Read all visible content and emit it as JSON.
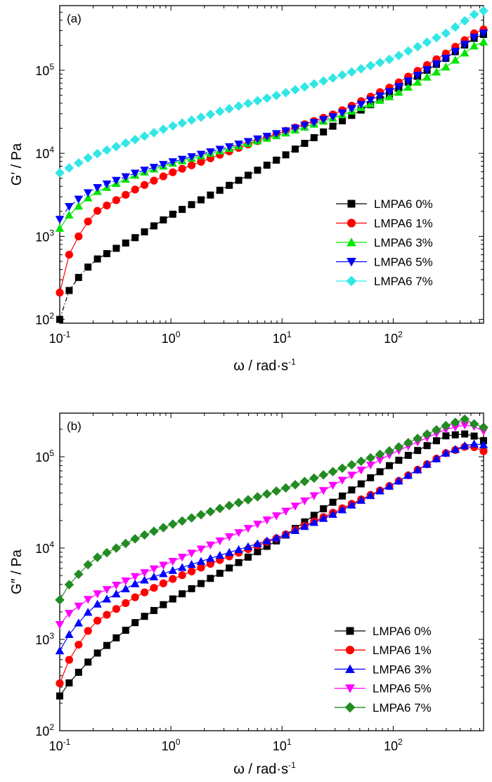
{
  "chart_data": [
    {
      "type": "scatter",
      "panel_label": "(a)",
      "ylabel": "G′ / Pa",
      "xlabel": "ω / rad·s-1",
      "x_scale": "log",
      "y_scale": "log",
      "xlim": [
        0.1,
        650
      ],
      "ylim": [
        90,
        600000
      ],
      "x_ticks": [
        {
          "base": "10",
          "exp": "-1",
          "value": 0.1
        },
        {
          "base": "10",
          "exp": "0",
          "value": 1
        },
        {
          "base": "10",
          "exp": "1",
          "value": 10
        },
        {
          "base": "10",
          "exp": "2",
          "value": 100
        }
      ],
      "y_ticks": [
        {
          "base": "10",
          "exp": "2",
          "value": 100
        },
        {
          "base": "10",
          "exp": "3",
          "value": 1000
        },
        {
          "base": "10",
          "exp": "4",
          "value": 10000
        },
        {
          "base": "10",
          "exp": "5",
          "value": 100000
        }
      ],
      "legend_position": "lower-right",
      "series": [
        {
          "name": "LMPA6 0%",
          "color": "#000000",
          "marker": "square",
          "line": "dashdot",
          "start": 100,
          "end": 270000,
          "anchors": [
            [
              0.1,
              100
            ],
            [
              0.125,
              250
            ],
            [
              0.2,
              500
            ],
            [
              0.5,
              1000
            ],
            [
              1,
              1800
            ],
            [
              3,
              3800
            ],
            [
              10,
              9000
            ],
            [
              30,
              22000
            ],
            [
              100,
              55000
            ],
            [
              300,
              140000
            ],
            [
              600,
              270000
            ]
          ]
        },
        {
          "name": "LMPA6 1%",
          "color": "#ff0000",
          "marker": "circle",
          "line": "solid",
          "start": 210,
          "end": 310000,
          "anchors": [
            [
              0.1,
              210
            ],
            [
              0.125,
              700
            ],
            [
              0.2,
              1900
            ],
            [
              0.5,
              3800
            ],
            [
              1,
              5800
            ],
            [
              3,
              10000
            ],
            [
              10,
              18000
            ],
            [
              30,
              30000
            ],
            [
              100,
              65000
            ],
            [
              300,
              160000
            ],
            [
              600,
              310000
            ]
          ]
        },
        {
          "name": "LMPA6 3%",
          "color": "#00e600",
          "marker": "triangle-up",
          "line": "solid",
          "start": 1250,
          "end": 220000,
          "anchors": [
            [
              0.1,
              1250
            ],
            [
              0.125,
              1900
            ],
            [
              0.2,
              3300
            ],
            [
              0.5,
              5600
            ],
            [
              1,
              7500
            ],
            [
              3,
              11000
            ],
            [
              10,
              17000
            ],
            [
              30,
              27000
            ],
            [
              100,
              50000
            ],
            [
              300,
              110000
            ],
            [
              600,
              220000
            ]
          ]
        },
        {
          "name": "LMPA6 5%",
          "color": "#0000ff",
          "marker": "triangle-down",
          "line": "dashdot",
          "start": 1600,
          "end": 280000,
          "anchors": [
            [
              0.1,
              1600
            ],
            [
              0.125,
              2400
            ],
            [
              0.2,
              3700
            ],
            [
              0.5,
              5900
            ],
            [
              1,
              7800
            ],
            [
              3,
              11500
            ],
            [
              10,
              18000
            ],
            [
              30,
              28000
            ],
            [
              100,
              58000
            ],
            [
              300,
              140000
            ],
            [
              600,
              280000
            ]
          ]
        },
        {
          "name": "LMPA6 7%",
          "color": "#33e6e6",
          "marker": "diamond",
          "line": "dashdot",
          "start": 5800,
          "end": 520000,
          "anchors": [
            [
              0.1,
              5800
            ],
            [
              0.2,
              9500
            ],
            [
              0.5,
              15000
            ],
            [
              1,
              21000
            ],
            [
              3,
              33000
            ],
            [
              10,
              52000
            ],
            [
              30,
              82000
            ],
            [
              100,
              140000
            ],
            [
              300,
              280000
            ],
            [
              600,
              520000
            ]
          ]
        }
      ]
    },
    {
      "type": "scatter",
      "panel_label": "(b)",
      "ylabel": "G″ / Pa",
      "xlabel": "ω / rad·s-1",
      "x_scale": "log",
      "y_scale": "log",
      "xlim": [
        0.1,
        650
      ],
      "ylim": [
        100,
        300000
      ],
      "x_ticks": [
        {
          "base": "10",
          "exp": "-1",
          "value": 0.1
        },
        {
          "base": "10",
          "exp": "0",
          "value": 1
        },
        {
          "base": "10",
          "exp": "1",
          "value": 10
        },
        {
          "base": "10",
          "exp": "2",
          "value": 100
        }
      ],
      "y_ticks": [
        {
          "base": "10",
          "exp": "2",
          "value": 100
        },
        {
          "base": "10",
          "exp": "3",
          "value": 1000
        },
        {
          "base": "10",
          "exp": "4",
          "value": 10000
        },
        {
          "base": "10",
          "exp": "5",
          "value": 100000
        }
      ],
      "legend_position": "lower-right",
      "series": [
        {
          "name": "LMPA6 0%",
          "color": "#000000",
          "marker": "square",
          "line": "solid",
          "start": 240,
          "end": 150000,
          "anchors": [
            [
              0.1,
              240
            ],
            [
              0.125,
              350
            ],
            [
              0.2,
              650
            ],
            [
              0.5,
              1600
            ],
            [
              1,
              2700
            ],
            [
              3,
              5600
            ],
            [
              10,
              13000
            ],
            [
              30,
              33000
            ],
            [
              100,
              85000
            ],
            [
              300,
              170000
            ],
            [
              500,
              180000
            ],
            [
              600,
              150000
            ]
          ]
        },
        {
          "name": "LMPA6 1%",
          "color": "#ff0000",
          "marker": "circle",
          "line": "solid",
          "start": 330,
          "end": 115000,
          "anchors": [
            [
              0.1,
              330
            ],
            [
              0.125,
              650
            ],
            [
              0.2,
              1500
            ],
            [
              0.5,
              3000
            ],
            [
              1,
              4500
            ],
            [
              3,
              7700
            ],
            [
              10,
              13500
            ],
            [
              30,
              25000
            ],
            [
              100,
              50000
            ],
            [
              300,
              110000
            ],
            [
              500,
              135000
            ],
            [
              600,
              115000
            ]
          ]
        },
        {
          "name": "LMPA6 3%",
          "color": "#0000ff",
          "marker": "triangle-up",
          "line": "solid",
          "start": 750,
          "end": 135000,
          "anchors": [
            [
              0.1,
              750
            ],
            [
              0.125,
              1200
            ],
            [
              0.2,
              2300
            ],
            [
              0.5,
              4200
            ],
            [
              1,
              5600
            ],
            [
              3,
              8600
            ],
            [
              10,
              13500
            ],
            [
              30,
              24000
            ],
            [
              100,
              50000
            ],
            [
              300,
              110000
            ],
            [
              500,
              140000
            ],
            [
              600,
              135000
            ]
          ]
        },
        {
          "name": "LMPA6 5%",
          "color": "#ff00ff",
          "marker": "triangle-down",
          "line": "solid",
          "start": 1450,
          "end": 190000,
          "anchors": [
            [
              0.1,
              1450
            ],
            [
              0.125,
              2000
            ],
            [
              0.2,
              3000
            ],
            [
              0.5,
              5000
            ],
            [
              1,
              7000
            ],
            [
              3,
              12500
            ],
            [
              10,
              24000
            ],
            [
              30,
              50000
            ],
            [
              100,
              110000
            ],
            [
              300,
              200000
            ],
            [
              500,
              230000
            ],
            [
              600,
              190000
            ]
          ]
        },
        {
          "name": "LMPA6 7%",
          "color": "#228b22",
          "marker": "diamond",
          "line": "solid",
          "start": 2700,
          "end": 210000,
          "anchors": [
            [
              0.1,
              2700
            ],
            [
              0.125,
              4200
            ],
            [
              0.2,
              7500
            ],
            [
              0.5,
              13000
            ],
            [
              1,
              18000
            ],
            [
              3,
              28000
            ],
            [
              10,
              44000
            ],
            [
              30,
              70000
            ],
            [
              100,
              120000
            ],
            [
              300,
              220000
            ],
            [
              450,
              260000
            ],
            [
              600,
              210000
            ]
          ]
        }
      ]
    }
  ]
}
